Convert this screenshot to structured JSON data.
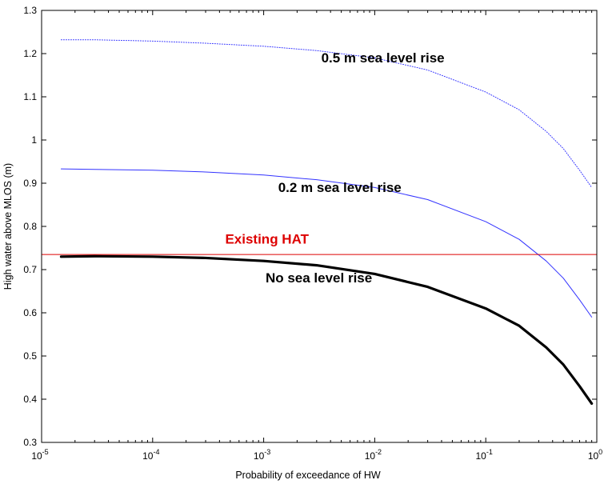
{
  "chart_data": {
    "type": "line",
    "title": "",
    "xlabel": "Probability of exceedance of HW",
    "ylabel": "High water above MLOS (m)",
    "x_scale": "log",
    "xlim": [
      1e-05,
      1
    ],
    "ylim": [
      0.3,
      1.3
    ],
    "x_ticks": [
      {
        "value": 1e-05,
        "base": "10",
        "exp": "-5"
      },
      {
        "value": 0.0001,
        "base": "10",
        "exp": "-4"
      },
      {
        "value": 0.001,
        "base": "10",
        "exp": "-3"
      },
      {
        "value": 0.01,
        "base": "10",
        "exp": "-2"
      },
      {
        "value": 0.1,
        "base": "10",
        "exp": "-1"
      },
      {
        "value": 1,
        "base": "10",
        "exp": "0"
      }
    ],
    "y_ticks": [
      {
        "value": 0.3,
        "label": "0.3"
      },
      {
        "value": 0.4,
        "label": "0.4"
      },
      {
        "value": 0.5,
        "label": "0.5"
      },
      {
        "value": 0.6,
        "label": "0.6"
      },
      {
        "value": 0.7,
        "label": "0.7"
      },
      {
        "value": 0.8,
        "label": "0.8"
      },
      {
        "value": 0.9,
        "label": "0.9"
      },
      {
        "value": 1,
        "label": "1"
      },
      {
        "value": 1.1,
        "label": "1.1"
      },
      {
        "value": 1.2,
        "label": "1.2"
      },
      {
        "value": 1.3,
        "label": "1.3"
      }
    ],
    "grid": false,
    "series": [
      {
        "label": "No sea level rise",
        "color": "#000000",
        "style": "solid-thick",
        "x": [
          1.5e-05,
          3e-05,
          0.0001,
          0.0003,
          0.001,
          0.003,
          0.01,
          0.03,
          0.1,
          0.2,
          0.35,
          0.5,
          0.7,
          0.9
        ],
        "y": [
          0.73,
          0.731,
          0.73,
          0.727,
          0.72,
          0.71,
          0.69,
          0.66,
          0.61,
          0.57,
          0.52,
          0.48,
          0.43,
          0.39
        ]
      },
      {
        "label": "0.2 m sea level rise",
        "color": "#3333ff",
        "style": "solid-thin",
        "x": [
          1.5e-05,
          3e-05,
          0.0001,
          0.0003,
          0.001,
          0.003,
          0.01,
          0.03,
          0.1,
          0.2,
          0.35,
          0.5,
          0.7,
          0.9
        ],
        "y": [
          0.933,
          0.932,
          0.93,
          0.926,
          0.919,
          0.908,
          0.89,
          0.862,
          0.811,
          0.77,
          0.72,
          0.68,
          0.63,
          0.59
        ]
      },
      {
        "label": "0.5 m sea level rise",
        "color": "#3333ff",
        "style": "dotted",
        "x": [
          1.5e-05,
          3e-05,
          0.0001,
          0.0003,
          0.001,
          0.003,
          0.01,
          0.03,
          0.1,
          0.2,
          0.35,
          0.5,
          0.7,
          0.9
        ],
        "y": [
          1.232,
          1.232,
          1.229,
          1.224,
          1.217,
          1.207,
          1.19,
          1.162,
          1.111,
          1.07,
          1.02,
          0.98,
          0.93,
          0.89
        ]
      }
    ],
    "reference_lines": [
      {
        "label": "Existing HAT",
        "y": 0.735,
        "color": "#dd0000"
      }
    ],
    "annotations": [
      {
        "text": "0.5 m sea level rise",
        "x": 0.0033,
        "y": 1.18
      },
      {
        "text": "0.2 m sea level rise",
        "x": 0.00135,
        "y": 0.88
      },
      {
        "text": "Existing HAT",
        "x": 0.00045,
        "y": 0.76,
        "color": "#dd0000"
      },
      {
        "text": "No sea level rise",
        "x": 0.00104,
        "y": 0.67
      }
    ]
  }
}
